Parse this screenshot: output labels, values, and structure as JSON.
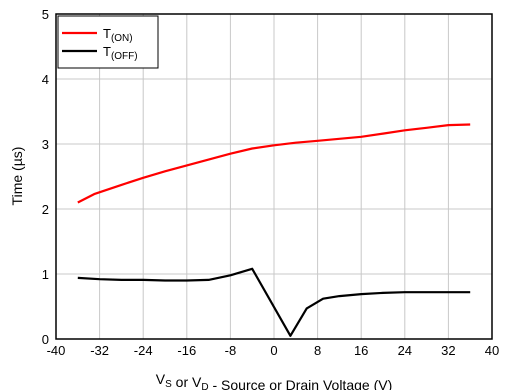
{
  "chart_data": {
    "type": "line",
    "title": "",
    "xlabel": {
      "parts": [
        {
          "text": "V",
          "sub": "S"
        },
        {
          "text": " or V",
          "sub": "D"
        },
        {
          "text": " - Source or Drain Voltage (V)",
          "sub": ""
        }
      ]
    },
    "ylabel": "Time (µs)",
    "xlim": [
      -40,
      40
    ],
    "ylim": [
      0,
      5
    ],
    "xticks": [
      -40,
      -32,
      -24,
      -16,
      -8,
      0,
      8,
      16,
      24,
      32,
      40
    ],
    "yticks": [
      0,
      1,
      2,
      3,
      4,
      5
    ],
    "grid": true,
    "legend_position": "top-left",
    "series": [
      {
        "name": "T(ON)",
        "name_main": "T",
        "name_sub": "(ON)",
        "color": "#ff0000",
        "x": [
          -36,
          -33,
          -28,
          -24,
          -20,
          -16,
          -12,
          -8,
          -4,
          0,
          4,
          8,
          12,
          16,
          20,
          24,
          28,
          32,
          36
        ],
        "y": [
          2.1,
          2.23,
          2.37,
          2.48,
          2.58,
          2.67,
          2.76,
          2.85,
          2.93,
          2.98,
          3.02,
          3.05,
          3.08,
          3.11,
          3.16,
          3.21,
          3.25,
          3.29,
          3.3
        ]
      },
      {
        "name": "T(OFF)",
        "name_main": "T",
        "name_sub": "(OFF)",
        "color": "#000000",
        "x": [
          -36,
          -32,
          -28,
          -24,
          -20,
          -16,
          -12,
          -8,
          -4,
          3,
          6,
          9,
          12,
          16,
          20,
          24,
          28,
          32,
          36
        ],
        "y": [
          0.94,
          0.92,
          0.91,
          0.91,
          0.9,
          0.9,
          0.91,
          0.98,
          1.08,
          0.05,
          0.47,
          0.62,
          0.66,
          0.69,
          0.71,
          0.72,
          0.72,
          0.72,
          0.72
        ]
      }
    ]
  }
}
